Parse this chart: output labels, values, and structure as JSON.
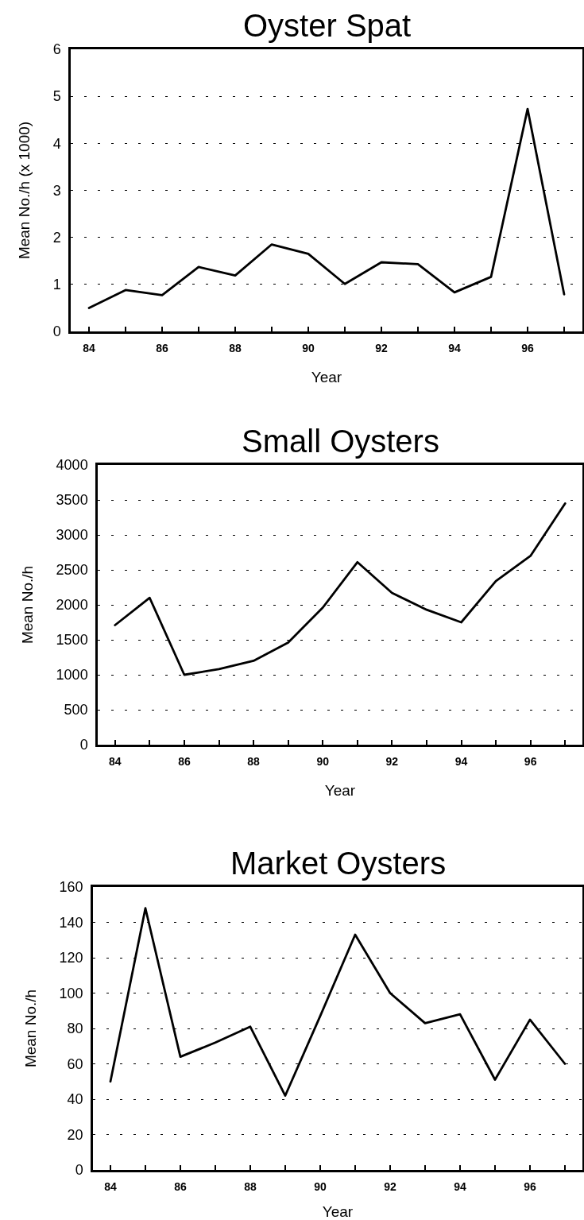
{
  "chart_data": [
    {
      "type": "line",
      "title": "Oyster Spat",
      "xlabel": "Year",
      "ylabel": "Mean No./h (x 1000)",
      "x": [
        84,
        85,
        86,
        87,
        88,
        89,
        90,
        91,
        92,
        93,
        94,
        95,
        96,
        97
      ],
      "xlim": [
        83.5,
        97.5
      ],
      "xticks": [
        84,
        {
          "value": 85,
          "label": null
        },
        86,
        {
          "value": 87,
          "label": null
        },
        88,
        {
          "value": 89,
          "label": null
        },
        90,
        {
          "value": 91,
          "label": null
        },
        92,
        {
          "value": 93,
          "label": null
        },
        94,
        {
          "value": 95,
          "label": null
        },
        96,
        {
          "value": 97,
          "label": null
        }
      ],
      "ylim": [
        0,
        6
      ],
      "yticks": [
        0,
        1,
        2,
        3,
        4,
        5,
        6
      ],
      "grid": "y",
      "line_style": "solid",
      "series": [
        {
          "color": "#000000",
          "values": [
            0.5,
            0.88,
            0.77,
            1.37,
            1.19,
            1.85,
            1.65,
            1.01,
            1.47,
            1.43,
            0.83,
            1.16,
            4.73,
            0.79
          ]
        }
      ]
    },
    {
      "type": "line",
      "title": "Small Oysters",
      "xlabel": "Year",
      "ylabel": "Mean No./h",
      "x": [
        84,
        85,
        86,
        87,
        88,
        89,
        90,
        91,
        92,
        93,
        94,
        95,
        96,
        97
      ],
      "xlim": [
        83.5,
        97.5
      ],
      "xticks": [
        84,
        {
          "value": 85,
          "label": null
        },
        86,
        {
          "value": 87,
          "label": null
        },
        88,
        {
          "value": 89,
          "label": null
        },
        90,
        {
          "value": 91,
          "label": null
        },
        92,
        {
          "value": 93,
          "label": null
        },
        94,
        {
          "value": 95,
          "label": null
        },
        96,
        {
          "value": 97,
          "label": null
        }
      ],
      "ylim": [
        0,
        4000
      ],
      "yticks": [
        0,
        500,
        1000,
        1500,
        2000,
        2500,
        3000,
        3500,
        4000
      ],
      "grid": "y",
      "line_style": "solid",
      "series": [
        {
          "color": "#000000",
          "values": [
            1710,
            2100,
            1000,
            1080,
            1200,
            1460,
            1960,
            2610,
            2170,
            1930,
            1750,
            2340,
            2700,
            3450
          ]
        }
      ]
    },
    {
      "type": "line",
      "title": "Market Oysters",
      "xlabel": "Year",
      "ylabel": "Mean No./h",
      "x": [
        84,
        85,
        86,
        87,
        88,
        89,
        90,
        91,
        92,
        93,
        94,
        95,
        96,
        97
      ],
      "xlim": [
        83.5,
        97.5
      ],
      "xticks": [
        84,
        {
          "value": 85,
          "label": null
        },
        86,
        {
          "value": 87,
          "label": null
        },
        88,
        {
          "value": 89,
          "label": null
        },
        90,
        {
          "value": 91,
          "label": null
        },
        92,
        {
          "value": 93,
          "label": null
        },
        94,
        {
          "value": 95,
          "label": null
        },
        96,
        {
          "value": 97,
          "label": null
        }
      ],
      "ylim": [
        0,
        160
      ],
      "yticks": [
        0,
        20,
        40,
        60,
        80,
        100,
        120,
        140,
        160
      ],
      "grid": "y",
      "line_style": "solid",
      "series": [
        {
          "color": "#000000",
          "values": [
            50,
            148,
            64,
            72,
            81,
            42,
            87,
            133,
            100,
            83,
            88,
            51,
            85,
            60
          ]
        }
      ]
    }
  ]
}
